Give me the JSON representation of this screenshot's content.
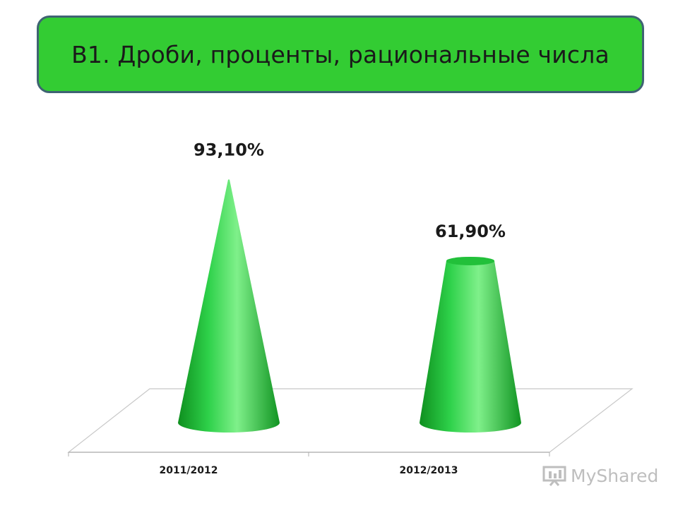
{
  "title": "B1. Дроби, проценты, рациональные числа",
  "watermark": "MyShared",
  "colors": {
    "header_fill": "#33cc33",
    "header_border": "#3f6373",
    "cone_dark": "#0f8f1f",
    "cone_mid": "#2ed14a",
    "cone_light": "#7ff08a"
  },
  "chart_data": {
    "type": "bar",
    "bar_shape": "cone",
    "categories": [
      "2011/2012",
      "2012/2013"
    ],
    "values": [
      93.1,
      61.9
    ],
    "data_labels": [
      "93,10%",
      "61,90%"
    ],
    "ylim": [
      0,
      100
    ],
    "grid": false,
    "legend": "none",
    "xlabel": "",
    "ylabel": ""
  }
}
